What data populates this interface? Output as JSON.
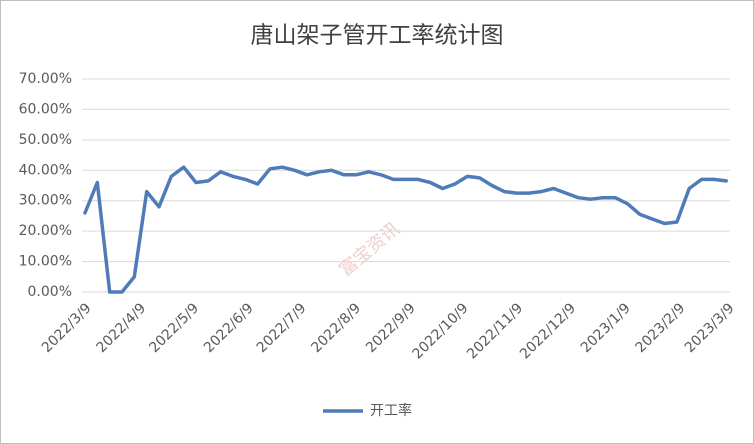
{
  "chart_data": {
    "type": "line",
    "title": "唐山架子管开工率统计图",
    "watermark": "富宝资讯",
    "x": [
      "2022/3/9",
      "2022/3/16",
      "2022/3/23",
      "2022/3/30",
      "2022/4/6",
      "2022/4/13",
      "2022/4/20",
      "2022/4/27",
      "2022/5/4",
      "2022/5/11",
      "2022/5/18",
      "2022/5/25",
      "2022/6/1",
      "2022/6/8",
      "2022/6/15",
      "2022/6/22",
      "2022/6/29",
      "2022/7/6",
      "2022/7/13",
      "2022/7/20",
      "2022/7/27",
      "2022/8/3",
      "2022/8/10",
      "2022/8/17",
      "2022/8/24",
      "2022/8/31",
      "2022/9/7",
      "2022/9/14",
      "2022/9/21",
      "2022/9/28",
      "2022/10/5",
      "2022/10/12",
      "2022/10/19",
      "2022/10/26",
      "2022/11/2",
      "2022/11/9",
      "2022/11/16",
      "2022/11/23",
      "2022/11/30",
      "2022/12/7",
      "2022/12/14",
      "2022/12/21",
      "2022/12/28",
      "2023/1/4",
      "2023/1/11",
      "2023/1/18",
      "2023/1/25",
      "2023/2/1",
      "2023/2/8",
      "2023/2/15",
      "2023/2/22",
      "2023/3/1",
      "2023/3/8"
    ],
    "series": [
      {
        "name": "开工率",
        "color": "#4f7cb8",
        "values": [
          26,
          36,
          0,
          0,
          5,
          33,
          28,
          38,
          41,
          36,
          36.5,
          39.5,
          38,
          37,
          35.5,
          40.5,
          41,
          40,
          38.5,
          39.5,
          40,
          38.5,
          38.5,
          39.5,
          38.5,
          37,
          37,
          37,
          36,
          34,
          35.5,
          38,
          37.5,
          35,
          33,
          32.5,
          32.5,
          33,
          34,
          32.5,
          31,
          30.5,
          31,
          31,
          29,
          25.5,
          24,
          22.5,
          23,
          34,
          37,
          37,
          36.5
        ]
      }
    ],
    "xlim": [
      "2022/3/9",
      "2023/3/9"
    ],
    "xticks": [
      "2022/3/9",
      "2022/4/9",
      "2022/5/9",
      "2022/6/9",
      "2022/7/9",
      "2022/8/9",
      "2022/9/9",
      "2022/10/9",
      "2022/11/9",
      "2022/12/9",
      "2023/1/9",
      "2023/2/9",
      "2023/3/9"
    ],
    "ylim": [
      0,
      70
    ],
    "yticks": [
      {
        "value": 0,
        "label": "0.00%"
      },
      {
        "value": 10,
        "label": "10.00%"
      },
      {
        "value": 20,
        "label": "20.00%"
      },
      {
        "value": 30,
        "label": "30.00%"
      },
      {
        "value": 40,
        "label": "40.00%"
      },
      {
        "value": 50,
        "label": "50.00%"
      },
      {
        "value": 60,
        "label": "60.00%"
      },
      {
        "value": 70,
        "label": "70.00%"
      }
    ],
    "grid": true
  }
}
